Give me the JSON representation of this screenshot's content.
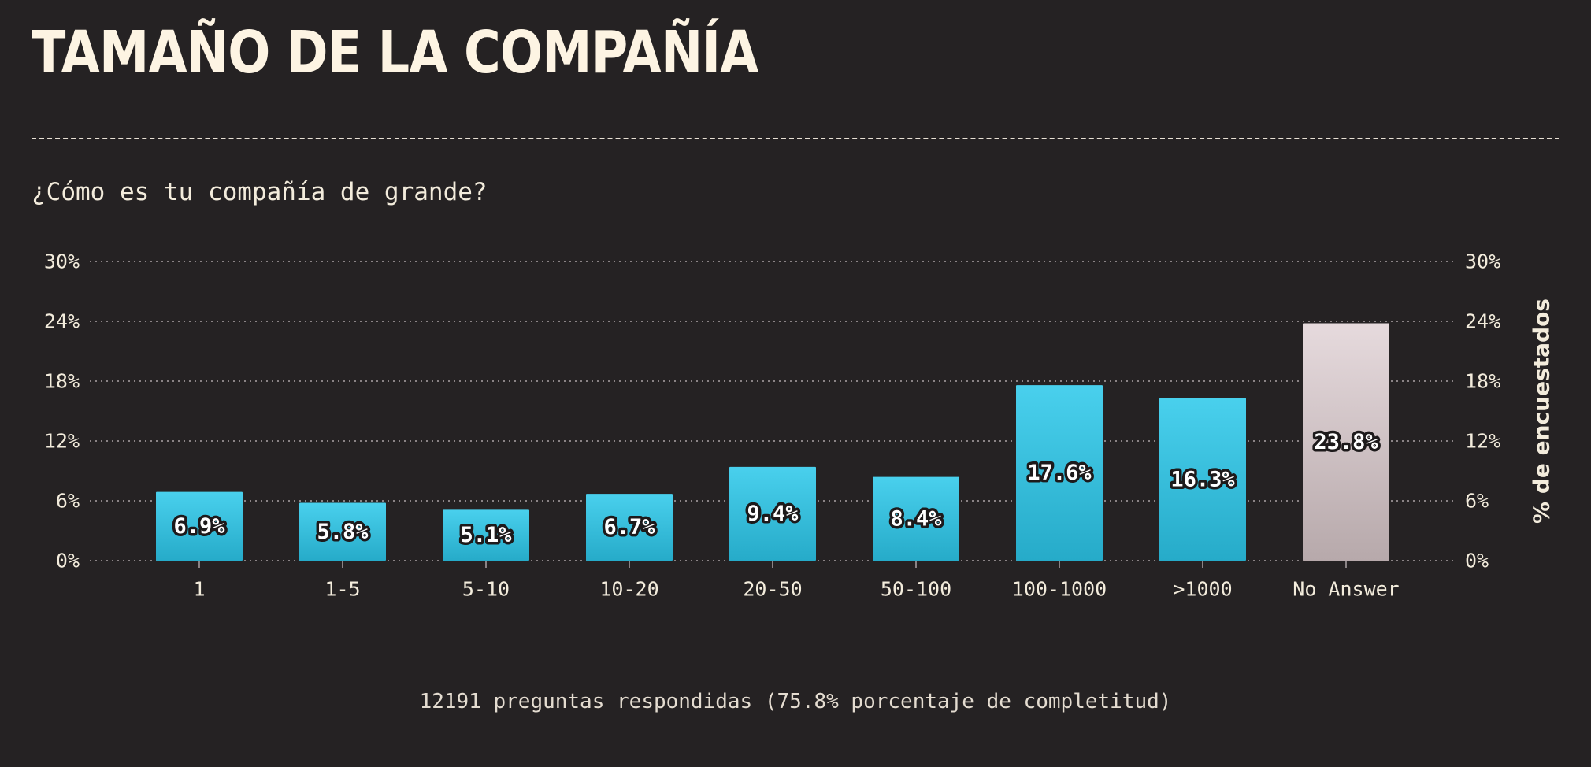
{
  "title": "Tamaño de la compañía",
  "question": "¿Cómo es tu compañía de grande?",
  "footer": "12191 preguntas respondidas (75.8% porcentaje de completitud)",
  "colors": {
    "bar_top": "#49d0ed",
    "bar_bottom": "#26abc9",
    "na_top": "#e6dadd",
    "na_bottom": "#b7a9ab",
    "text": "#f3ecdc",
    "grid": "#8a8385"
  },
  "chart_data": {
    "type": "bar",
    "title": "",
    "xlabel": "",
    "ylabel": "% de encuestados",
    "ylim": [
      0,
      30
    ],
    "yticks": [
      0,
      6,
      12,
      18,
      24,
      30
    ],
    "ytick_labels": [
      "0%",
      "6%",
      "12%",
      "18%",
      "24%",
      "30%"
    ],
    "grid": true,
    "categories": [
      "1",
      "1-5",
      "5-10",
      "10-20",
      "20-50",
      "50-100",
      "100-1000",
      ">1000",
      "No Answer"
    ],
    "values": [
      6.9,
      5.8,
      5.1,
      6.7,
      9.4,
      8.4,
      17.6,
      16.3,
      23.8
    ],
    "value_labels": [
      "6.9%",
      "5.8%",
      "5.1%",
      "6.7%",
      "9.4%",
      "8.4%",
      "17.6%",
      "16.3%",
      "23.8%"
    ],
    "highlight_category": "No Answer"
  }
}
